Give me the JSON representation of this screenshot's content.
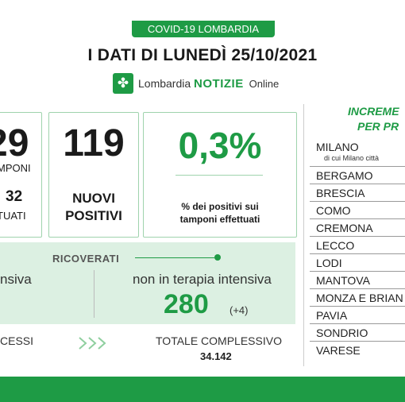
{
  "header": {
    "badge": "COVID-19 LOMBARDIA",
    "headline": "I DATI DI LUNEDÌ 25/10/2021",
    "logo_brand_prefix": "Lombardia",
    "logo_brand": "NOTIZIE",
    "logo_suffix": "Online"
  },
  "stats": {
    "tamponi_num": "29",
    "tamponi_label": "MPONI",
    "effettuati_num": "32",
    "effettuati_label": "TUATI",
    "nuovi_positivi_num": "119",
    "nuovi_positivi_label_1": "NUOVI",
    "nuovi_positivi_label_2": "POSITIVI",
    "percent_value": "0,3%",
    "percent_label_1": "% dei positivi sui",
    "percent_label_2": "tamponi effettuati"
  },
  "ricoverati": {
    "title": "RICOVERATI",
    "intensiva_label": "nsiva",
    "non_intensiva_label": "non in terapia intensiva",
    "non_intensiva_value": "280",
    "non_intensiva_delta": "(+4)"
  },
  "decessi": {
    "label": "CESSI",
    "totale_label": "TOTALE COMPLESSIVO",
    "totale_value": "34.142"
  },
  "province": {
    "title_1": "INCREME",
    "title_2": "PER PR",
    "milano": "MILANO",
    "milano_note": "di cui Milano città",
    "items": [
      "BERGAMO",
      "BRESCIA",
      "COMO",
      "CREMONA",
      "LECCO",
      "LODI",
      "MANTOVA",
      "MONZA E BRIAN",
      "PAVIA",
      "SONDRIO",
      "VARESE"
    ]
  },
  "colors": {
    "accent": "#1e9b45",
    "band": "#dcf0e2",
    "card_border": "#9fd3ad"
  },
  "icons": {
    "logo": "leaf-cross-icon",
    "arrows": "double-chevron-right-icon"
  }
}
